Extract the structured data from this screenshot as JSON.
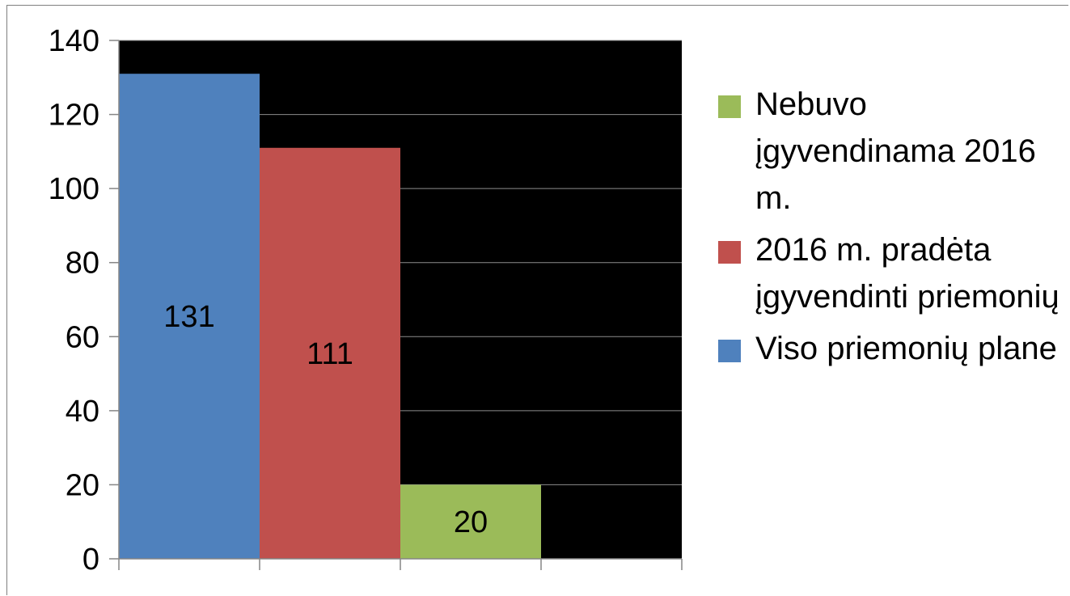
{
  "chart_data": {
    "type": "bar",
    "title": "",
    "xlabel": "",
    "ylabel": "",
    "ylim": [
      0,
      140
    ],
    "yticks": [
      0,
      20,
      40,
      60,
      80,
      100,
      120,
      140
    ],
    "gridlines": true,
    "plot_background": "#000000",
    "legend_position": "right",
    "series": [
      {
        "name": "Viso priemonių plane",
        "value": 131,
        "color": "#4F81BD"
      },
      {
        "name": "2016 m. pradėta įgyvendinti priemonių",
        "value": 111,
        "color": "#C0504D"
      },
      {
        "name": "Nebuvo įgyvendinama 2016 m.",
        "value": 20,
        "color": "#9BBB59"
      }
    ],
    "legend_order": [
      2,
      1,
      0
    ]
  }
}
